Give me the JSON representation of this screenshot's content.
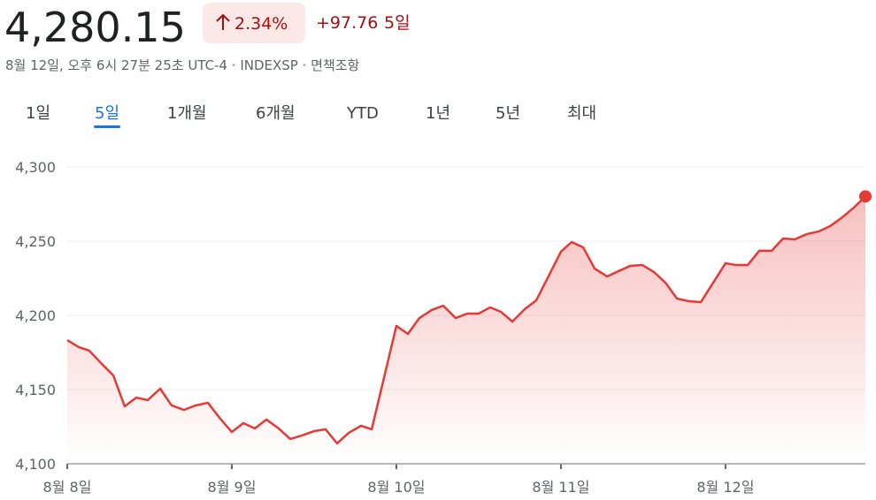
{
  "header": {
    "price": "4,280.15",
    "change_percent": "2.34%",
    "change_value": "+97.76",
    "period": "5일",
    "subtitle": "8월 12일, 오후 6시 27분 25초 UTC-4 · INDEXSP · 면책조항"
  },
  "tabs": [
    "1일",
    "5일",
    "1개월",
    "6개월",
    "YTD",
    "1년",
    "5년",
    "최대"
  ],
  "selected_tab": 1,
  "chart_data": {
    "type": "line",
    "color": "#e53935",
    "grid": true,
    "x": [
      0,
      0.07,
      0.134,
      0.21,
      0.28,
      0.349,
      0.419,
      0.489,
      0.565,
      0.634,
      0.71,
      0.78,
      0.855,
      0.925,
      1,
      1.07,
      1.14,
      1.21,
      1.285,
      1.355,
      1.425,
      1.5,
      1.57,
      1.64,
      1.71,
      1.785,
      1.85,
      2,
      2.07,
      2.14,
      2.215,
      2.285,
      2.36,
      2.43,
      2.5,
      2.57,
      2.635,
      2.705,
      2.78,
      2.85,
      3,
      3.065,
      3.135,
      3.205,
      3.28,
      3.35,
      3.42,
      3.495,
      3.565,
      3.635,
      3.705,
      3.78,
      3.85,
      4,
      4.065,
      4.135,
      4.205,
      4.28,
      4.35,
      4.42,
      4.495,
      4.565,
      4.635,
      4.71,
      4.78,
      4.85
    ],
    "series": [
      {
        "name": "INDEXSP",
        "color": "#e53935",
        "values": [
          4183.3,
          4178.6,
          4176.2,
          4167.3,
          4159.5,
          4138.7,
          4144.6,
          4142.9,
          4150.6,
          4139.3,
          4136.3,
          4139.3,
          4141.1,
          4131.0,
          4121.4,
          4127.4,
          4123.8,
          4129.8,
          4123.8,
          4116.7,
          4119.0,
          4122.0,
          4123.2,
          4113.7,
          4120.8,
          4125.6,
          4123.2,
          4192.9,
          4187.5,
          4198.2,
          4203.6,
          4206.5,
          4198.2,
          4201.2,
          4201.2,
          4205.4,
          4202.4,
          4195.8,
          4204.2,
          4210.1,
          4242.9,
          4249.4,
          4245.8,
          4231.5,
          4226.2,
          4229.8,
          4233.3,
          4233.9,
          4229.2,
          4222.0,
          4211.3,
          4209.5,
          4208.9,
          4235.1,
          4233.9,
          4233.9,
          4243.5,
          4243.5,
          4251.8,
          4251.2,
          4254.8,
          4256.5,
          4260.1,
          4266.1,
          4272.6,
          4280.15
        ]
      }
    ],
    "xlim": [
      0,
      4.85
    ],
    "xticks": [
      {
        "value": 0,
        "label": "8월 8일"
      },
      {
        "value": 1,
        "label": "8월 9일"
      },
      {
        "value": 2,
        "label": "8월 10일"
      },
      {
        "value": 3,
        "label": "8월 11일"
      },
      {
        "value": 4,
        "label": "8월 12일"
      }
    ],
    "ylim": [
      4100,
      4300
    ],
    "yticks": [
      {
        "value": 4100,
        "label": "4,100"
      },
      {
        "value": 4150,
        "label": "4,150"
      },
      {
        "value": 4200,
        "label": "4,200"
      },
      {
        "value": 4250,
        "label": "4,250"
      },
      {
        "value": 4300,
        "label": "4,300"
      }
    ]
  }
}
